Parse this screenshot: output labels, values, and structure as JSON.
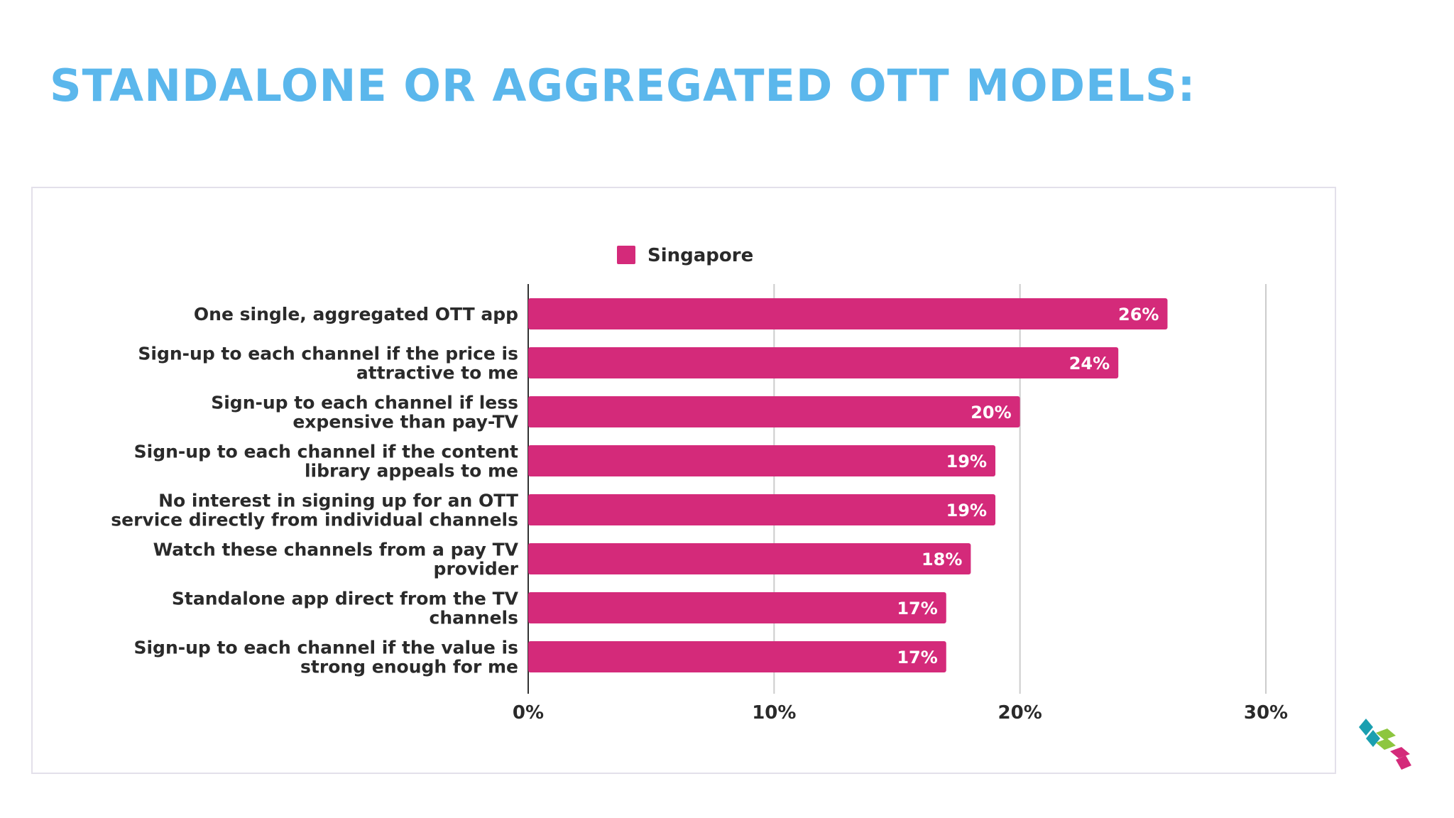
{
  "slide": {
    "title": "STANDALONE OR AGGREGATED OTT MODELS:"
  },
  "colors": {
    "title": "#5bb7ec",
    "bar": "#d42a7a",
    "bar_label": "#ffffff",
    "text": "#2a2a2a",
    "grid": "#cccccc",
    "logo_teal": "#1a9fb0",
    "logo_green": "#8dc63f",
    "logo_pink": "#d42a7a"
  },
  "logo": {
    "icon": "stacked-chevron-logo"
  },
  "chart_data": {
    "type": "bar",
    "orientation": "horizontal",
    "categories": [
      [
        "One single, aggregated OTT app"
      ],
      [
        "Sign-up to each channel if the price is",
        "attractive to me"
      ],
      [
        "Sign-up to each channel if less",
        "expensive than pay-TV"
      ],
      [
        "Sign-up to each channel if the content",
        "library appeals to me"
      ],
      [
        "No interest in signing up for an OTT",
        "service directly from individual channels"
      ],
      [
        "Watch these channels from a pay TV",
        "provider"
      ],
      [
        "Standalone app direct from the TV",
        "channels"
      ],
      [
        "Sign-up to each channel if the value is",
        "strong enough for me"
      ]
    ],
    "series": [
      {
        "name": "Singapore",
        "values": [
          26,
          24,
          20,
          19,
          19,
          18,
          17,
          17
        ],
        "data_labels": [
          "26%",
          "24%",
          "20%",
          "19%",
          "19%",
          "18%",
          "17%",
          "17%"
        ]
      }
    ],
    "xlim": [
      0,
      30
    ],
    "xticks": [
      0,
      10,
      20,
      30
    ],
    "xtick_labels": [
      "0%",
      "10%",
      "20%",
      "30%"
    ],
    "grid": "vertical",
    "legend": "top-center"
  }
}
